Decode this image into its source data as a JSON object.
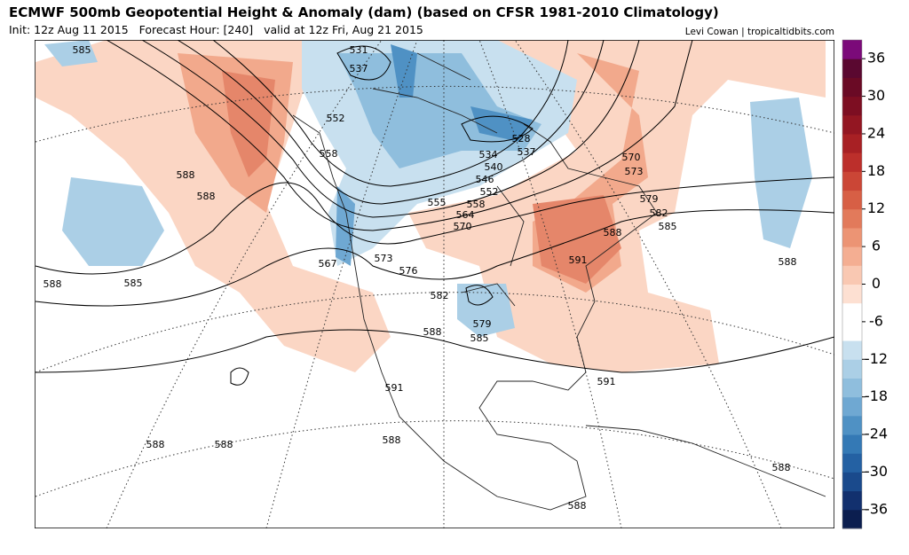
{
  "header": {
    "title": "ECMWF 500mb Geopotential Height & Anomaly (dam) (based on CFSR 1981-2010 Climatology)",
    "subtitle": "Init: 12z Aug 11 2015   Forecast Hour: [240]   valid at 12z Fri, Aug 21 2015",
    "credit": "Levi Cowan | tropicaltidbits.com"
  },
  "colorbar": {
    "lim": [
      -39,
      39
    ],
    "ticks": [
      36,
      30,
      24,
      18,
      12,
      6,
      0,
      -6,
      -12,
      -18,
      -24,
      -30,
      -36
    ],
    "colors": [
      "#0b1e4f",
      "#12306e",
      "#1a4a8c",
      "#2461a3",
      "#3479b5",
      "#4f91c4",
      "#6fa8d2",
      "#8fbedd",
      "#abcfe6",
      "#c8e0ef",
      "#ffffff",
      "#ffffff",
      "#fde0d2",
      "#f9c8b2",
      "#f4ae92",
      "#ec9474",
      "#e27a5b",
      "#d75f45",
      "#cb4636",
      "#bc2f2b",
      "#a82024",
      "#931622",
      "#7d0e22",
      "#6a0a25",
      "#5a0830",
      "#7b0a79"
    ]
  },
  "contour_labels": [
    "585",
    "531",
    "537",
    "552",
    "558",
    "528",
    "534",
    "537",
    "540",
    "546",
    "552",
    "558",
    "555",
    "564",
    "570",
    "570",
    "573",
    "579",
    "582",
    "585",
    "588",
    "591",
    "588",
    "588",
    "567",
    "573",
    "576",
    "582",
    "588",
    "585",
    "579",
    "585",
    "588",
    "591",
    "591",
    "588",
    "588",
    "588",
    "588",
    "588",
    "588"
  ]
}
